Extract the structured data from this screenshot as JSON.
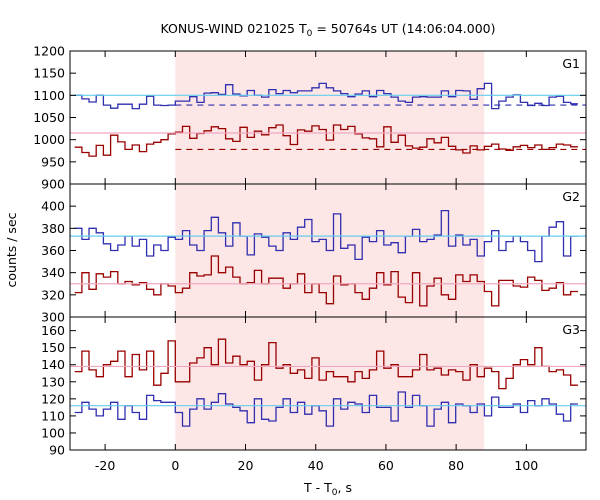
{
  "chart_data": {
    "type": "line",
    "title_main": "KONUS-WIND 021025 T",
    "title_sub": "0",
    "title_rest": " = 50764s UT (14:06:04.000)",
    "xlabel_main": "T - T",
    "xlabel_sub": "0",
    "xlabel_rest": ", s",
    "ylabel": "counts / sec",
    "xlim": [
      -30,
      117
    ],
    "xticks": [
      -20,
      0,
      20,
      40,
      60,
      80,
      100
    ],
    "highlight": {
      "x0": 0,
      "x1": 88,
      "color": "#fde6e6"
    },
    "colors": {
      "blue": "#2f2fb0",
      "red": "#990000",
      "cyan": "#66ccee",
      "pink": "#f0a8c0"
    },
    "panels": [
      {
        "name": "G1",
        "ylim": [
          900,
          1200
        ],
        "yticks": [
          900,
          950,
          1000,
          1050,
          1100,
          1150,
          1200
        ],
        "blue_level": 1100,
        "blue_bg": 1078,
        "red_level": 1015,
        "red_bg": 978,
        "series": [
          {
            "color": "blue",
            "values": [
              1100,
              1092,
              1085,
              1100,
              1078,
              1071,
              1080,
              1080,
              1070,
              1080,
              1098,
              1078,
              1077,
              1078,
              1087,
              1087,
              1097,
              1084,
              1105,
              1106,
              1102,
              1124,
              1103,
              1099,
              1111,
              1100,
              1096,
              1113,
              1104,
              1111,
              1106,
              1110,
              1110,
              1117,
              1127,
              1117,
              1110,
              1104,
              1097,
              1103,
              1110,
              1097,
              1111,
              1104,
              1096,
              1087,
              1084,
              1096,
              1097,
              1096,
              1096,
              1110,
              1097,
              1111,
              1110,
              1091,
              1115,
              1127,
              1070,
              1087,
              1096,
              1101,
              1084,
              1077,
              1082,
              1077,
              1096,
              1098,
              1084,
              1081
            ]
          },
          {
            "color": "red",
            "values": [
              983,
              971,
              963,
              987,
              965,
              1010,
              995,
              978,
              988,
              973,
              990,
              994,
              1000,
              1013,
              1017,
              1030,
              1003,
              1014,
              1020,
              1029,
              1025,
              1002,
              996,
              1028,
              1005,
              1019,
              1011,
              1027,
              1033,
              1009,
              989,
              1022,
              1019,
              1031,
              1023,
              999,
              1033,
              1023,
              1030,
              1013,
              1004,
              1002,
              984,
              1029,
              994,
              1010,
              986,
              981,
              983,
              1002,
              993,
              1005,
              985,
              977,
              970,
              986,
              977,
              985,
              990,
              979,
              976,
              984,
              987,
              982,
              988,
              978,
              982,
              990,
              988,
              984
            ]
          }
        ]
      },
      {
        "name": "G2",
        "ylim": [
          300,
          420
        ],
        "yticks": [
          300,
          320,
          340,
          360,
          380,
          400
        ],
        "blue_level": 373,
        "red_level": 330,
        "series": [
          {
            "color": "blue",
            "values": [
              380,
              370,
              380,
              376,
              366,
              360,
              365,
              373,
              364,
              370,
              355,
              365,
              360,
              372,
              370,
              378,
              365,
              360,
              378,
              390,
              376,
              364,
              385,
              373,
              356,
              375,
              372,
              364,
              360,
              376,
              370,
              381,
              388,
              368,
              370,
              360,
              393,
              362,
              365,
              352,
              372,
              368,
              378,
              365,
              367,
              358,
              373,
              379,
              368,
              370,
              374,
              396,
              364,
              374,
              365,
              370,
              355,
              368,
              378,
              360,
              368,
              373,
              368,
              360,
              350,
              373,
              381,
              386,
              355,
              373
            ]
          },
          {
            "color": "red",
            "values": [
              322,
              340,
              325,
              339,
              336,
              341,
              330,
              332,
              329,
              331,
              325,
              320,
              330,
              328,
              322,
              326,
              340,
              337,
              338,
              355,
              340,
              345,
              336,
              330,
              331,
              342,
              330,
              335,
              335,
              326,
              330,
              339,
              322,
              330,
              322,
              312,
              337,
              329,
              330,
              322,
              316,
              326,
              340,
              329,
              341,
              318,
              313,
              340,
              310,
              328,
              335,
              320,
              316,
              338,
              332,
              338,
              332,
              323,
              310,
              333,
              333,
              328,
              327,
              336,
              333,
              324,
              326,
              331,
              320,
              323
            ]
          }
        ]
      },
      {
        "name": "G3",
        "ylim": [
          90,
          168
        ],
        "yticks": [
          90,
          100,
          110,
          120,
          130,
          140,
          150,
          160
        ],
        "blue_level": 116,
        "red_level": 139,
        "series": [
          {
            "color": "blue",
            "values": [
              112,
              118,
              114,
              110,
              114,
              118,
              108,
              116,
              112,
              108,
              122,
              119,
              118,
              118,
              112,
              104,
              114,
              120,
              114,
              118,
              123,
              117,
              115,
              113,
              106,
              120,
              108,
              107,
              115,
              120,
              112,
              118,
              111,
              116,
              113,
              104,
              120,
              114,
              118,
              117,
              112,
              122,
              115,
              115,
              107,
              124,
              115,
              122,
              116,
              104,
              114,
              118,
              106,
              117,
              116,
              112,
              117,
              110,
              121,
              115,
              115,
              117,
              112,
              119,
              116,
              120,
              117,
              111,
              107,
              117
            ]
          },
          {
            "color": "red",
            "values": [
              136,
              148,
              137,
              133,
              140,
              142,
              148,
              133,
              146,
              137,
              148,
              128,
              135,
              154,
              130,
              130,
              141,
              144,
              150,
              140,
              155,
              141,
              145,
              140,
              142,
              131,
              140,
              153,
              138,
              140,
              135,
              137,
              132,
              144,
              131,
              136,
              133,
              133,
              130,
              136,
              132,
              137,
              148,
              138,
              140,
              133,
              133,
              137,
              146,
              137,
              138,
              134,
              137,
              136,
              131,
              140,
              133,
              138,
              136,
              126,
              132,
              140,
              143,
              140,
              150,
              139,
              136,
              137,
              134,
              128
            ]
          }
        ]
      }
    ]
  }
}
